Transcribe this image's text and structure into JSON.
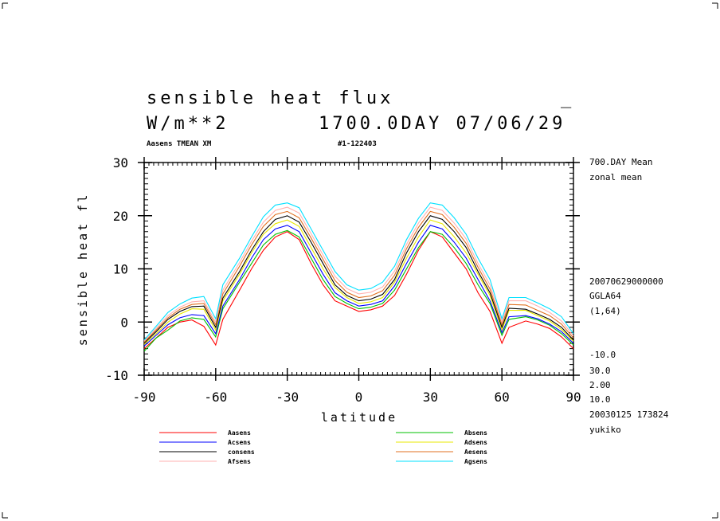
{
  "header": {
    "title": "sensible heat flux",
    "cursor": "_",
    "units": "W/m**2",
    "time": "1700.0DAY 07/06/29",
    "run_label": "Aasens TMEAN XM",
    "run_id": "#1-122403"
  },
  "side_notes": {
    "mean_label": "700.DAY Mean",
    "zonal_label": "zonal mean",
    "date_code": "20070629000000",
    "grid": "GGLA64",
    "grid_index": "(1,64)",
    "range_lines": [
      "-10.0",
      "30.0",
      "2.00",
      "10.0"
    ],
    "stamp": "20030125 173824",
    "user": "yukiko"
  },
  "chart_data": {
    "type": "line",
    "title": "sensible heat flux",
    "xlabel": "latitude",
    "ylabel": "sensible heat fl",
    "xlim": [
      -90,
      90
    ],
    "ylim": [
      -10,
      30
    ],
    "x_ticks": [
      "-90",
      "-60",
      "-30",
      "0",
      "30",
      "60",
      "90"
    ],
    "x_tick_values": [
      -90,
      -60,
      -30,
      0,
      30,
      60,
      90
    ],
    "y_ticks": [
      "-10",
      "0",
      "10",
      "20",
      "30"
    ],
    "y_tick_values": [
      -10,
      0,
      10,
      20,
      30
    ],
    "x": [
      -90,
      -85,
      -80,
      -75,
      -70,
      -65,
      -60,
      -57,
      -50,
      -45,
      -40,
      -35,
      -30,
      -25,
      -20,
      -15,
      -10,
      -5,
      0,
      5,
      10,
      15,
      20,
      25,
      30,
      35,
      40,
      45,
      50,
      55,
      60,
      63,
      70,
      75,
      80,
      85,
      90
    ],
    "series": [
      {
        "name": "Aasens",
        "color": "#ff0000",
        "values": [
          -5,
          -3,
          -1,
          0,
          0.4,
          -0.8,
          -4.3,
          0.5,
          6,
          10,
          13.5,
          16,
          17,
          15.5,
          11,
          7,
          4,
          3,
          2,
          2.3,
          3,
          5,
          9,
          13.5,
          17,
          16,
          13,
          10,
          5.5,
          2,
          -4,
          -1,
          0.2,
          -0.4,
          -1.2,
          -2.8,
          -5
        ]
      },
      {
        "name": "Absens",
        "color": "#00c000",
        "values": [
          -5.5,
          -3,
          -1.5,
          0.2,
          0.8,
          0.5,
          -2.8,
          2.5,
          7.5,
          11,
          14.5,
          16.5,
          17.2,
          16,
          12,
          8,
          4.8,
          3.5,
          2.5,
          2.8,
          3.5,
          6,
          10,
          14,
          17,
          16.5,
          14,
          11,
          7,
          3.5,
          -2.5,
          0.5,
          1,
          0.4,
          -0.6,
          -2.2,
          -4.3
        ]
      },
      {
        "name": "Acsens",
        "color": "#0000ff",
        "values": [
          -4.5,
          -2.5,
          -0.5,
          0.8,
          1.4,
          1.2,
          -2.2,
          3,
          8,
          12,
          15.5,
          17.5,
          18.2,
          17,
          13,
          9,
          5.5,
          4,
          3,
          3.3,
          4,
          6.8,
          11,
          15,
          18.2,
          17.5,
          15,
          12,
          8,
          4,
          -2,
          1,
          1.2,
          0.6,
          -0.4,
          -1.8,
          -4
        ]
      },
      {
        "name": "Adsens",
        "color": "#e8e800",
        "values": [
          -4.2,
          -2.2,
          0,
          1.5,
          2.5,
          2.4,
          -1.5,
          4,
          9,
          13,
          16.5,
          18.5,
          19.2,
          18,
          14,
          10,
          6.5,
          4.6,
          3.5,
          3.8,
          4.6,
          7.5,
          12,
          16,
          19.2,
          18.5,
          16,
          13,
          9,
          5,
          -1.5,
          2.2,
          2.2,
          1.2,
          0.2,
          -1.4,
          -3.6
        ]
      },
      {
        "name": "consens",
        "color": "#000000",
        "values": [
          -4,
          -1.8,
          0.5,
          2,
          2.9,
          3,
          -1,
          4.5,
          9.5,
          13.5,
          17,
          19.3,
          20,
          18.8,
          15,
          11,
          7,
          5,
          4,
          4.3,
          5.2,
          8,
          13,
          17,
          20,
          19.3,
          17,
          14,
          9.5,
          5.5,
          -1,
          2.6,
          2.4,
          1.5,
          0.5,
          -1,
          -3.4
        ]
      },
      {
        "name": "Aesens",
        "color": "#e07020",
        "values": [
          -3.8,
          -1.5,
          0.8,
          2.4,
          3.3,
          3.5,
          -0.5,
          5.3,
          10.5,
          14.5,
          18,
          20.2,
          20.8,
          19.6,
          15.8,
          11.8,
          7.8,
          5.6,
          4.6,
          4.9,
          5.9,
          8.8,
          13.8,
          17.8,
          20.8,
          20.2,
          17.8,
          14.8,
          10.3,
          6.2,
          -0.5,
          3.3,
          3.2,
          2.2,
          1.2,
          -0.4,
          -3
        ]
      },
      {
        "name": "Afsens",
        "color": "#ffb0b0",
        "values": [
          -3.6,
          -1.2,
          1.2,
          2.8,
          3.8,
          4,
          0,
          6,
          11.2,
          15.2,
          18.8,
          21,
          21.6,
          20.5,
          16.6,
          12.6,
          8.6,
          6.3,
          5.3,
          5.6,
          6.6,
          9.6,
          14.6,
          18.6,
          21.6,
          21,
          18.6,
          15.6,
          11,
          7,
          0,
          4,
          4,
          3,
          1.8,
          0.2,
          -2.6
        ]
      },
      {
        "name": "Agsens",
        "color": "#00e0ff",
        "values": [
          -3.4,
          -0.8,
          1.8,
          3.4,
          4.5,
          4.8,
          0.6,
          7,
          12,
          16,
          19.8,
          22,
          22.4,
          21.5,
          17.5,
          13.5,
          9.5,
          7,
          6,
          6.3,
          7.5,
          10.5,
          15.5,
          19.5,
          22.4,
          22,
          19.6,
          16.5,
          12,
          8,
          0.6,
          4.6,
          4.6,
          3.6,
          2.5,
          1,
          -2.2
        ]
      }
    ],
    "legend_placement": "bottom",
    "grid": false
  }
}
